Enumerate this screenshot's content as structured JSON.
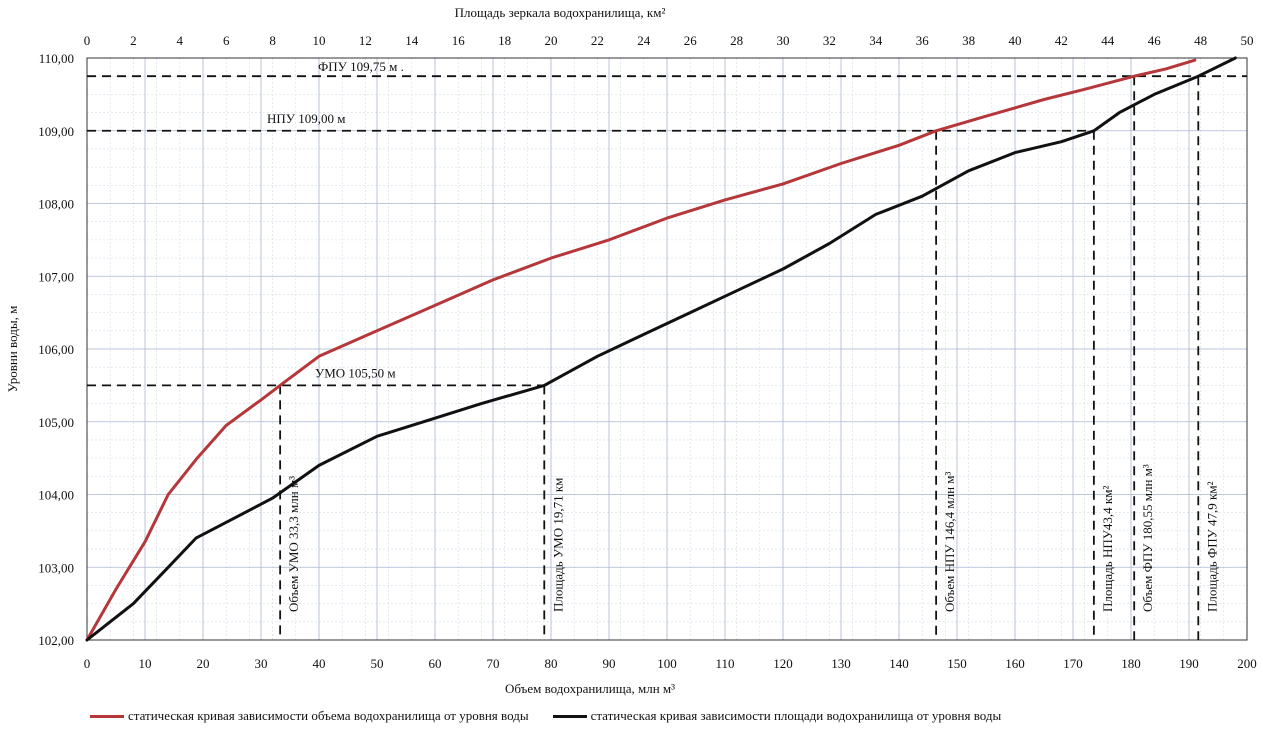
{
  "chart_data": {
    "type": "line",
    "x_bottom": {
      "label": "Объем водохранилища, млн м³",
      "lim": [
        0,
        200
      ],
      "ticks": [
        "0",
        "10",
        "20",
        "30",
        "40",
        "50",
        "60",
        "70",
        "80",
        "90",
        "100",
        "110",
        "120",
        "130",
        "140",
        "150",
        "160",
        "170",
        "180",
        "190",
        "200"
      ]
    },
    "x_top": {
      "label": "Площадь зеркала водохранилища, км²",
      "lim": [
        0,
        50
      ],
      "ticks": [
        "0",
        "2",
        "4",
        "6",
        "8",
        "10",
        "12",
        "14",
        "16",
        "18",
        "20",
        "22",
        "24",
        "26",
        "28",
        "30",
        "32",
        "34",
        "36",
        "38",
        "40",
        "42",
        "44",
        "46",
        "48",
        "50"
      ]
    },
    "y": {
      "label": "Уровни воды, м",
      "lim": [
        102,
        110
      ],
      "ticks": [
        "102,00",
        "103,00",
        "104,00",
        "105,00",
        "106,00",
        "107,00",
        "108,00",
        "109,00",
        "110,00"
      ]
    },
    "grid": true,
    "series": [
      {
        "name": "статическая кривая зависимости объема водохранилища от уровня воды",
        "color": "#b5373a",
        "axis": "bottom",
        "points": [
          [
            0,
            102.0
          ],
          [
            5,
            102.7
          ],
          [
            10,
            103.35
          ],
          [
            14,
            104.0
          ],
          [
            19,
            104.5
          ],
          [
            24,
            104.95
          ],
          [
            30,
            105.3
          ],
          [
            33.3,
            105.5
          ],
          [
            40,
            105.9
          ],
          [
            50,
            106.25
          ],
          [
            60,
            106.6
          ],
          [
            70,
            106.95
          ],
          [
            80,
            107.25
          ],
          [
            90,
            107.5
          ],
          [
            100,
            107.8
          ],
          [
            110,
            108.05
          ],
          [
            120,
            108.27
          ],
          [
            130,
            108.55
          ],
          [
            140,
            108.8
          ],
          [
            146.4,
            109.0
          ],
          [
            155,
            109.2
          ],
          [
            165,
            109.43
          ],
          [
            172,
            109.57
          ],
          [
            180.55,
            109.75
          ],
          [
            186,
            109.85
          ],
          [
            191,
            109.97
          ]
        ]
      },
      {
        "name": "статическая кривая зависимости площади водохранилища от уровня воды",
        "color": "#111111",
        "axis": "top",
        "points": [
          [
            0,
            102.0
          ],
          [
            2,
            102.5
          ],
          [
            3.5,
            103.0
          ],
          [
            4.7,
            103.4
          ],
          [
            6.5,
            103.7
          ],
          [
            8,
            103.95
          ],
          [
            10,
            104.4
          ],
          [
            12.5,
            104.8
          ],
          [
            14.5,
            105.0
          ],
          [
            17,
            105.25
          ],
          [
            19.71,
            105.5
          ],
          [
            22,
            105.9
          ],
          [
            24,
            106.2
          ],
          [
            26,
            106.5
          ],
          [
            28,
            106.8
          ],
          [
            30,
            107.1
          ],
          [
            32,
            107.45
          ],
          [
            34,
            107.85
          ],
          [
            36,
            108.1
          ],
          [
            38,
            108.45
          ],
          [
            40,
            108.7
          ],
          [
            42,
            108.85
          ],
          [
            43.4,
            109.0
          ],
          [
            44.5,
            109.25
          ],
          [
            46,
            109.5
          ],
          [
            47.9,
            109.75
          ],
          [
            49.5,
            110.0
          ]
        ]
      }
    ],
    "annotations": [
      {
        "text": "ФПУ 109,75  м .",
        "y": 109.75
      },
      {
        "text": "НПУ 109,00  м",
        "y": 109.0
      },
      {
        "text": "УМО 105,50  м",
        "y": 105.5
      },
      {
        "text": "Объем УМО  33,3 млн м³",
        "x_bottom": 33.3
      },
      {
        "text": "Площадь УМО 19,71 км",
        "x_top": 19.71
      },
      {
        "text": "Объем  НПУ  146,4 млн м³",
        "x_bottom": 146.4
      },
      {
        "text": "Площадь НПУ43,4 км²",
        "x_top": 43.4
      },
      {
        "text": "Объем ФПУ  180,55  млн  м³",
        "x_bottom": 180.55
      },
      {
        "text": "Площадь ФПУ 47,9 км²",
        "x_top": 47.9
      }
    ]
  }
}
